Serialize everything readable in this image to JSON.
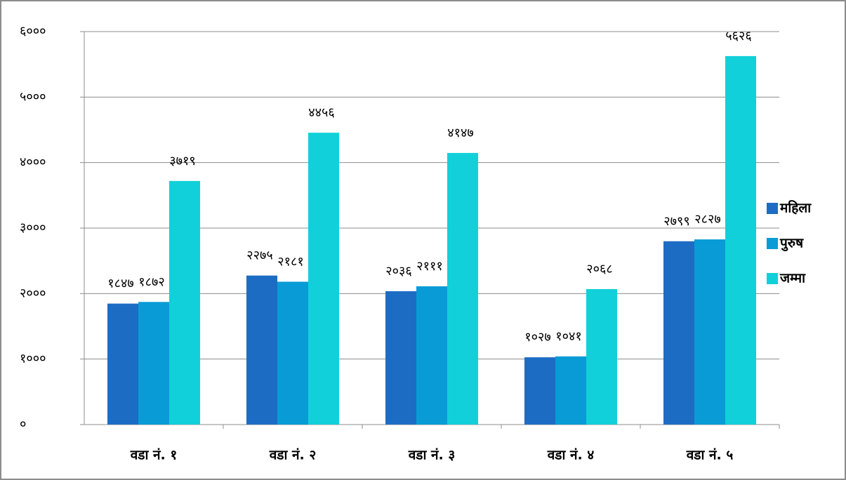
{
  "chart_data": {
    "type": "bar",
    "categories": [
      "वडा नं. १",
      "वडा नं. २",
      "वडा नं. ३",
      "वडा नं. ४",
      "वडा नं. ५"
    ],
    "series": [
      {
        "name": "महिला",
        "color": "#1d6cc4",
        "values": [
          1847,
          2275,
          2036,
          1027,
          2799
        ],
        "value_labels": [
          "१८४७",
          "२२७५",
          "२०३६",
          "१०२७",
          "२७९९"
        ]
      },
      {
        "name": "पुरुष",
        "color": "#089bd6",
        "values": [
          1872,
          2181,
          2111,
          1041,
          2827
        ],
        "value_labels": [
          "१८७२",
          "२१८१",
          "२१११",
          "१०४१",
          "२८२७"
        ]
      },
      {
        "name": "जम्मा",
        "color": "#12d0d9",
        "values": [
          3719,
          4456,
          4147,
          2068,
          5626
        ],
        "value_labels": [
          "३७१९",
          "४४५६",
          "४१४७",
          "२०६८",
          "५६२६"
        ]
      }
    ],
    "ylim": [
      0,
      6000
    ],
    "yticks": [
      {
        "value": 0,
        "label": "०"
      },
      {
        "value": 1000,
        "label": "१०००"
      },
      {
        "value": 2000,
        "label": "२०००"
      },
      {
        "value": 3000,
        "label": "३०००"
      },
      {
        "value": 4000,
        "label": "४०००"
      },
      {
        "value": 5000,
        "label": "५०००"
      },
      {
        "value": 6000,
        "label": "६०००"
      }
    ],
    "grid": true,
    "legend": "right"
  }
}
